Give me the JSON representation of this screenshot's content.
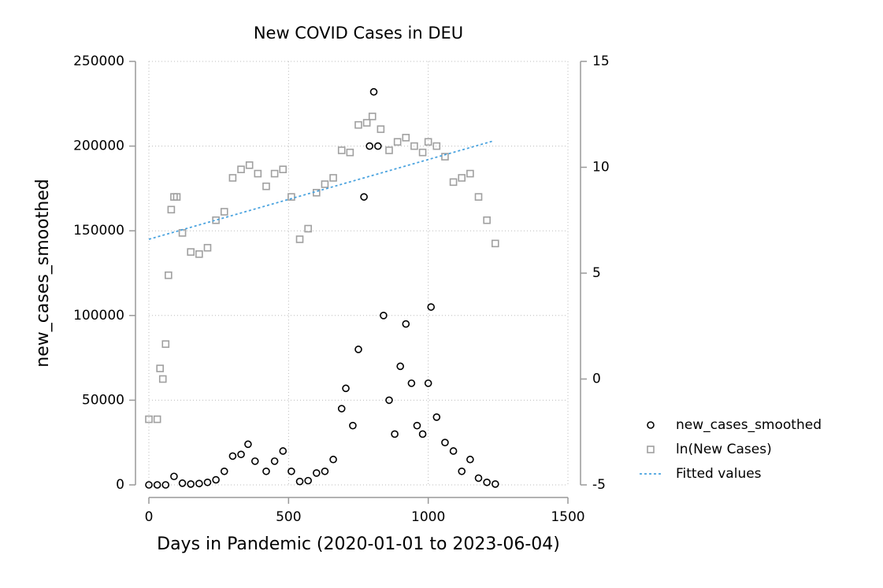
{
  "chart_data": {
    "type": "scatter",
    "title": "New COVID Cases in DEU",
    "x_label": "Days in Pandemic (2020-01-01 to 2023-06-04)",
    "y_label": "new_cases_smoothed",
    "xlim": [
      0,
      1500
    ],
    "xticks": [
      0,
      500,
      1000,
      1500
    ],
    "ylim": [
      0,
      250000
    ],
    "yticks": [
      0,
      50000,
      100000,
      150000,
      200000,
      250000
    ],
    "y2lim": [
      -5,
      15
    ],
    "y2ticks": [
      -5,
      0,
      5,
      10,
      15
    ],
    "grid": true,
    "legend": "right",
    "series": [
      {
        "name": "new_cases_smoothed",
        "color": "#000000",
        "marker": "circle",
        "x": [
          0,
          30,
          60,
          90,
          120,
          150,
          180,
          210,
          240,
          270,
          300,
          330,
          355,
          380,
          420,
          450,
          480,
          510,
          540,
          570,
          600,
          630,
          660,
          690,
          705,
          730,
          750,
          770,
          790,
          805,
          820,
          840,
          860,
          880,
          900,
          920,
          940,
          960,
          980,
          1000,
          1010,
          1030,
          1060,
          1090,
          1120,
          1150,
          1180,
          1210,
          1240
        ],
        "values": [
          0,
          0,
          0,
          5000,
          1000,
          500,
          800,
          1500,
          3000,
          8000,
          17000,
          18000,
          24000,
          14000,
          8000,
          14000,
          20000,
          8000,
          2000,
          2500,
          7000,
          8000,
          15000,
          45000,
          57000,
          35000,
          80000,
          170000,
          200000,
          232000,
          200000,
          100000,
          50000,
          30000,
          70000,
          95000,
          60000,
          35000,
          30000,
          60000,
          105000,
          40000,
          25000,
          20000,
          8000,
          15000,
          4000,
          1500,
          500
        ]
      },
      {
        "name": "ln(New Cases)",
        "color": "#a0a0a0",
        "marker": "square",
        "axis": "y2",
        "x": [
          0,
          30,
          40,
          50,
          60,
          70,
          80,
          90,
          100,
          120,
          150,
          180,
          210,
          240,
          270,
          300,
          330,
          360,
          390,
          420,
          450,
          480,
          510,
          540,
          570,
          600,
          630,
          660,
          690,
          720,
          750,
          780,
          800,
          830,
          860,
          890,
          920,
          950,
          980,
          1000,
          1030,
          1060,
          1090,
          1120,
          1150,
          1180,
          1210,
          1240
        ],
        "values": [
          -1.9,
          -1.9,
          0.5,
          0,
          1.65,
          4.9,
          8.0,
          8.6,
          8.6,
          6.9,
          6.0,
          5.9,
          6.2,
          7.5,
          7.9,
          9.5,
          9.9,
          10.1,
          9.7,
          9.1,
          9.7,
          9.9,
          8.6,
          6.6,
          7.1,
          8.8,
          9.2,
          9.5,
          10.8,
          10.7,
          12.0,
          12.1,
          12.4,
          11.8,
          10.8,
          11.2,
          11.4,
          11.0,
          10.7,
          11.2,
          11.0,
          10.5,
          9.3,
          9.5,
          9.7,
          8.6,
          7.5,
          6.4
        ]
      },
      {
        "name": "Fitted values",
        "color": "#4aa3df",
        "marker": "dashed-line",
        "axis": "y2",
        "x": [
          0,
          1235
        ],
        "values": [
          6.6,
          11.25
        ]
      }
    ]
  }
}
